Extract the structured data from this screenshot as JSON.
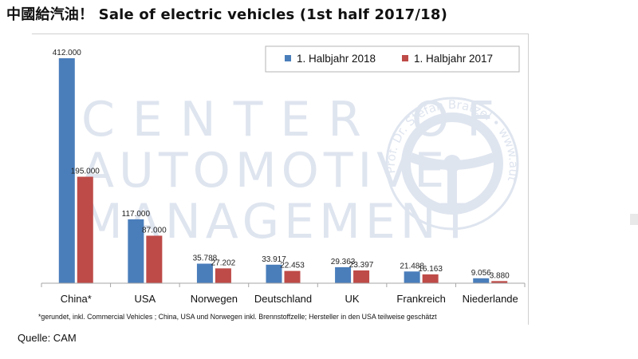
{
  "title": "中國給汽油！ Sale of electric vehicles (1st half 2017/18)",
  "source": "Quelle: CAM",
  "watermark": {
    "lines": [
      "CENTER OF",
      "AUTOMOTIVE",
      "MANAGEMENT"
    ],
    "seal_text": "Prof. Dr. Stefan Bratzel • www.auto-institut.de"
  },
  "footnote": "*gerundet, inkl. Commercial Vehicles ; China, USA und Norwegen inkl. Brennstoffzelle; Hersteller in den USA teilweise geschätzt",
  "chart_data": {
    "type": "bar",
    "categories": [
      "China*",
      "USA",
      "Norwegen",
      "Deutschland",
      "UK",
      "Frankreich",
      "Niederlande"
    ],
    "series": [
      {
        "name": "1. Halbjahr 2018",
        "values": [
          412000,
          117000,
          35788,
          33917,
          29363,
          21488,
          9056
        ],
        "labels": [
          "412.000",
          "117.000",
          "35.788",
          "33.917",
          "29.363",
          "21.488",
          "9.056"
        ],
        "color": "#4a7ebb"
      },
      {
        "name": "1. Halbjahr 2017",
        "values": [
          195000,
          87000,
          27202,
          22453,
          23397,
          16163,
          3880
        ],
        "labels": [
          "195.000",
          "87.000",
          "27.202",
          "22.453",
          "23.397",
          "16.163",
          "3.880"
        ],
        "color": "#be4b48"
      }
    ],
    "ylim": [
      0,
      412000
    ],
    "legend": "top-right",
    "grid": false
  }
}
